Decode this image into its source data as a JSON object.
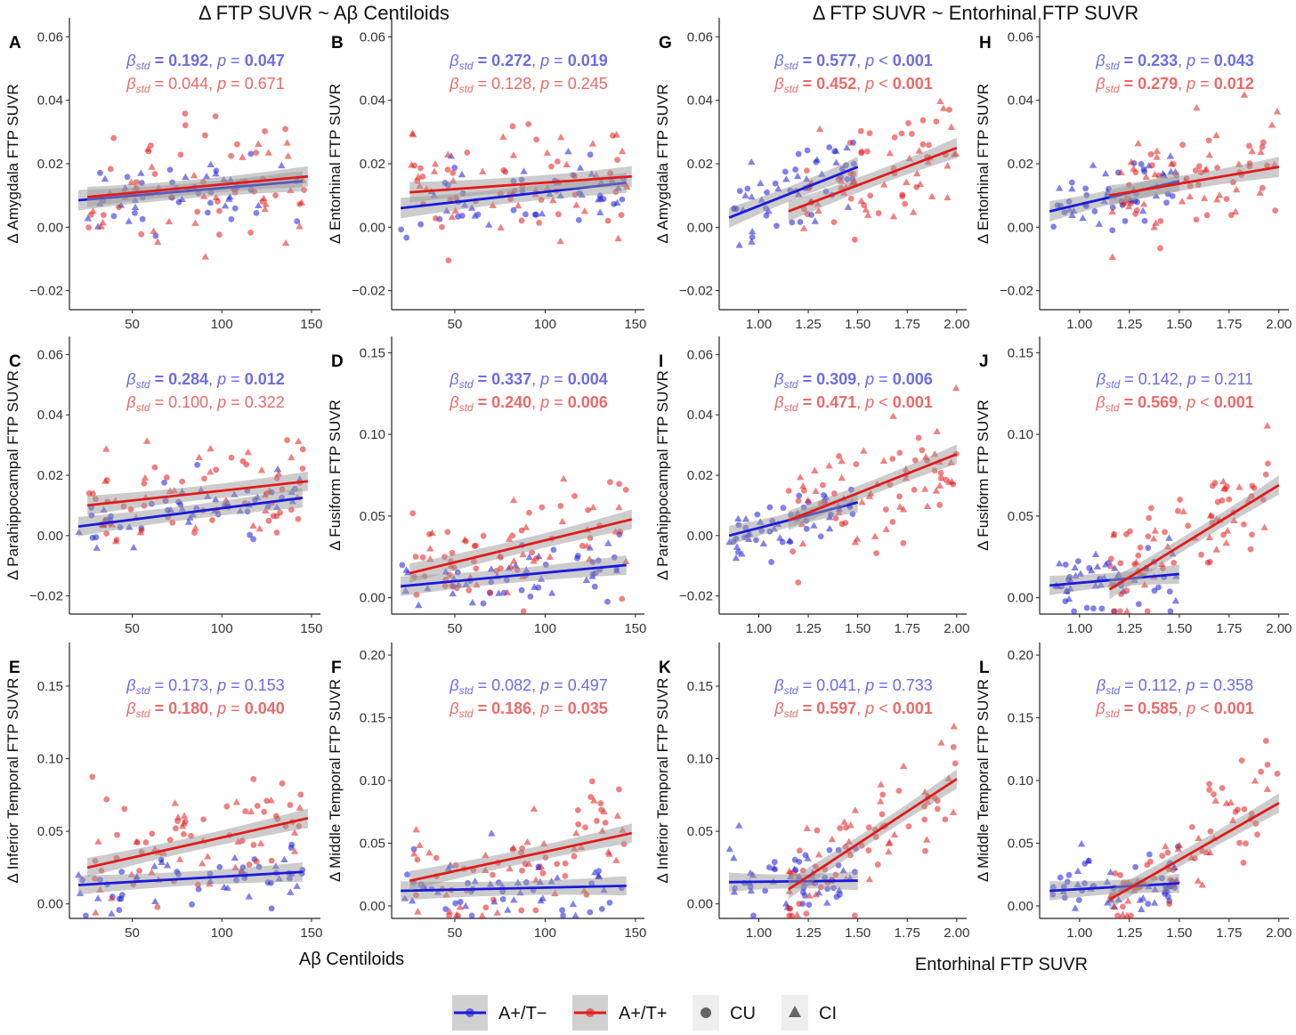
{
  "figure": {
    "section_titles": [
      "Δ FTP SUVR ~ Aβ Centiloids",
      "Δ FTP SUVR ~ Entorhinal FTP SUVR"
    ],
    "x_titles": [
      "Aβ Centiloids",
      "Entorhinal FTP SUVR"
    ]
  },
  "legend": {
    "items": [
      {
        "label": "A+/T−",
        "kind": "line",
        "color": "#1a1adb"
      },
      {
        "label": "A+/T+",
        "kind": "line",
        "color": "#e31a1a"
      },
      {
        "label": "CU",
        "kind": "circle",
        "color": "#666666"
      },
      {
        "label": "CI",
        "kind": "triangle",
        "color": "#666666"
      }
    ]
  },
  "colors": {
    "neg": "#1a1adb",
    "pos": "#e31a1a",
    "neg_text": "#6b6bea",
    "pos_text": "#ef6868",
    "ribbon": "#9a9a9a"
  },
  "chart_data": [
    {
      "id": "A",
      "type": "scatter",
      "ylabel": "Δ Amygdala FTP SUVR",
      "xlim": [
        15,
        155
      ],
      "ylim": [
        -0.026,
        0.066
      ],
      "xticks": [
        "50",
        "100",
        "150"
      ],
      "yticks": [
        "−0.02",
        "0.00",
        "0.02",
        "0.04",
        "0.06"
      ],
      "stats": {
        "neg": {
          "beta": "0.192",
          "p_op": "=",
          "p": "0.047",
          "bold": true
        },
        "pos": {
          "beta": "0.044",
          "p_op": "=",
          "p": "0.671",
          "bold": false
        }
      },
      "fits": {
        "neg": [
          [
            20,
            0.0085
          ],
          [
            145,
            0.0145
          ]
        ],
        "pos": [
          [
            25,
            0.0095
          ],
          [
            148,
            0.016
          ]
        ]
      }
    },
    {
      "id": "B",
      "type": "scatter",
      "ylabel": "Δ Entorhinal FTP SUVR",
      "xlim": [
        15,
        155
      ],
      "ylim": [
        -0.026,
        0.066
      ],
      "xticks": [
        "50",
        "100",
        "150"
      ],
      "yticks": [
        "−0.02",
        "0.00",
        "0.02",
        "0.04",
        "0.06"
      ],
      "stats": {
        "neg": {
          "beta": "0.272",
          "p_op": "=",
          "p": "0.019",
          "bold": true
        },
        "pos": {
          "beta": "0.128",
          "p_op": "=",
          "p": "0.245",
          "bold": false
        }
      },
      "fits": {
        "neg": [
          [
            20,
            0.006
          ],
          [
            145,
            0.014
          ]
        ],
        "pos": [
          [
            25,
            0.011
          ],
          [
            148,
            0.016
          ]
        ]
      }
    },
    {
      "id": "G",
      "type": "scatter",
      "ylabel": "Δ Amygdala FTP SUVR",
      "xlim": [
        0.8,
        2.05
      ],
      "ylim": [
        -0.026,
        0.066
      ],
      "xticks": [
        "1.00",
        "1.25",
        "1.50",
        "1.75",
        "2.00"
      ],
      "yticks": [
        "−0.02",
        "0.00",
        "0.02",
        "0.04",
        "0.06"
      ],
      "stats": {
        "neg": {
          "beta": "0.577",
          "p_op": "<",
          "p": "0.001",
          "bold": true
        },
        "pos": {
          "beta": "0.452",
          "p_op": "<",
          "p": "0.001",
          "bold": true
        }
      },
      "fits": {
        "neg": [
          [
            0.85,
            0.003
          ],
          [
            1.5,
            0.019
          ]
        ],
        "pos": [
          [
            1.15,
            0.005
          ],
          [
            2.0,
            0.025
          ]
        ]
      }
    },
    {
      "id": "H",
      "type": "scatter",
      "ylabel": "Δ Entorhinal FTP SUVR",
      "xlim": [
        0.8,
        2.05
      ],
      "ylim": [
        -0.026,
        0.066
      ],
      "xticks": [
        "1.00",
        "1.25",
        "1.50",
        "1.75",
        "2.00"
      ],
      "yticks": [
        "−0.02",
        "0.00",
        "0.02",
        "0.04",
        "0.06"
      ],
      "stats": {
        "neg": {
          "beta": "0.233",
          "p_op": "=",
          "p": "0.043",
          "bold": true
        },
        "pos": {
          "beta": "0.279",
          "p_op": "=",
          "p": "0.012",
          "bold": true
        }
      },
      "fits": {
        "neg": [
          [
            0.85,
            0.005
          ],
          [
            1.5,
            0.0145
          ]
        ],
        "pos": [
          [
            1.15,
            0.01
          ],
          [
            2.0,
            0.019
          ]
        ]
      }
    },
    {
      "id": "C",
      "type": "scatter",
      "ylabel": "Δ Parahippocampal FTP SUVR",
      "xlim": [
        15,
        155
      ],
      "ylim": [
        -0.026,
        0.066
      ],
      "xticks": [
        "50",
        "100",
        "150"
      ],
      "yticks": [
        "−0.02",
        "0.00",
        "0.02",
        "0.04",
        "0.06"
      ],
      "stats": {
        "neg": {
          "beta": "0.284",
          "p_op": "=",
          "p": "0.012",
          "bold": true
        },
        "pos": {
          "beta": "0.100",
          "p_op": "=",
          "p": "0.322",
          "bold": false
        }
      },
      "fits": {
        "neg": [
          [
            20,
            0.003
          ],
          [
            145,
            0.0125
          ]
        ],
        "pos": [
          [
            25,
            0.01
          ],
          [
            148,
            0.018
          ]
        ]
      }
    },
    {
      "id": "D",
      "type": "scatter",
      "ylabel": "Δ Fusiform FTP SUVR",
      "xlim": [
        15,
        155
      ],
      "ylim": [
        -0.01,
        0.16
      ],
      "xticks": [
        "50",
        "100",
        "150"
      ],
      "yticks": [
        "0.00",
        "0.05",
        "0.10",
        "0.15"
      ],
      "stats": {
        "neg": {
          "beta": "0.337",
          "p_op": "=",
          "p": "0.004",
          "bold": true
        },
        "pos": {
          "beta": "0.240",
          "p_op": "=",
          "p": "0.006",
          "bold": true
        }
      },
      "fits": {
        "neg": [
          [
            20,
            0.007
          ],
          [
            145,
            0.02
          ]
        ],
        "pos": [
          [
            25,
            0.015
          ],
          [
            148,
            0.048
          ]
        ]
      }
    },
    {
      "id": "I",
      "type": "scatter",
      "ylabel": "Δ Parahippocampal FTP SUVR",
      "xlim": [
        0.8,
        2.05
      ],
      "ylim": [
        -0.026,
        0.066
      ],
      "xticks": [
        "1.00",
        "1.25",
        "1.50",
        "1.75",
        "2.00"
      ],
      "yticks": [
        "−0.02",
        "0.00",
        "0.02",
        "0.04",
        "0.06"
      ],
      "stats": {
        "neg": {
          "beta": "0.309",
          "p_op": "=",
          "p": "0.006",
          "bold": true
        },
        "pos": {
          "beta": "0.471",
          "p_op": "<",
          "p": "0.001",
          "bold": true
        }
      },
      "fits": {
        "neg": [
          [
            0.85,
            0.0
          ],
          [
            1.5,
            0.011
          ]
        ],
        "pos": [
          [
            1.15,
            0.005
          ],
          [
            2.0,
            0.027
          ]
        ]
      }
    },
    {
      "id": "J",
      "type": "scatter",
      "ylabel": "Δ Fusiform FTP SUVR",
      "xlim": [
        0.8,
        2.05
      ],
      "ylim": [
        -0.01,
        0.16
      ],
      "xticks": [
        "1.00",
        "1.25",
        "1.50",
        "1.75",
        "2.00"
      ],
      "yticks": [
        "0.00",
        "0.05",
        "0.10",
        "0.15"
      ],
      "stats": {
        "neg": {
          "beta": "0.142",
          "p_op": "=",
          "p": "0.211",
          "bold": false
        },
        "pos": {
          "beta": "0.569",
          "p_op": "<",
          "p": "0.001",
          "bold": true
        }
      },
      "fits": {
        "neg": [
          [
            0.85,
            0.0075
          ],
          [
            1.5,
            0.0145
          ]
        ],
        "pos": [
          [
            1.15,
            0.005
          ],
          [
            2.0,
            0.069
          ]
        ]
      }
    },
    {
      "id": "E",
      "type": "scatter",
      "ylabel": "Δ Inferior Temporal FTP SUVR",
      "xlim": [
        15,
        155
      ],
      "ylim": [
        -0.01,
        0.18
      ],
      "xticks": [
        "50",
        "100",
        "150"
      ],
      "yticks": [
        "0.00",
        "0.05",
        "0.10",
        "0.15"
      ],
      "stats": {
        "neg": {
          "beta": "0.173",
          "p_op": "=",
          "p": "0.153",
          "bold": false
        },
        "pos": {
          "beta": "0.180",
          "p_op": "=",
          "p": "0.040",
          "bold": true
        }
      },
      "fits": {
        "neg": [
          [
            20,
            0.013
          ],
          [
            145,
            0.022
          ]
        ],
        "pos": [
          [
            25,
            0.025
          ],
          [
            148,
            0.059
          ]
        ]
      }
    },
    {
      "id": "F",
      "type": "scatter",
      "ylabel": "Δ Middle Temporal FTP SUVR",
      "xlim": [
        15,
        155
      ],
      "ylim": [
        -0.01,
        0.21
      ],
      "xticks": [
        "50",
        "100",
        "150"
      ],
      "yticks": [
        "0.00",
        "0.05",
        "0.10",
        "0.15",
        "0.20"
      ],
      "stats": {
        "neg": {
          "beta": "0.082",
          "p_op": "=",
          "p": "0.497",
          "bold": false
        },
        "pos": {
          "beta": "0.186",
          "p_op": "=",
          "p": "0.035",
          "bold": true
        }
      },
      "fits": {
        "neg": [
          [
            20,
            0.012
          ],
          [
            145,
            0.016
          ]
        ],
        "pos": [
          [
            25,
            0.02
          ],
          [
            148,
            0.058
          ]
        ]
      }
    },
    {
      "id": "K",
      "type": "scatter",
      "ylabel": "Δ Inferior Temporal FTP SUVR",
      "xlim": [
        0.8,
        2.05
      ],
      "ylim": [
        -0.01,
        0.18
      ],
      "xticks": [
        "1.00",
        "1.25",
        "1.50",
        "1.75",
        "2.00"
      ],
      "yticks": [
        "0.00",
        "0.05",
        "0.10",
        "0.15"
      ],
      "stats": {
        "neg": {
          "beta": "0.041",
          "p_op": "=",
          "p": "0.733",
          "bold": false
        },
        "pos": {
          "beta": "0.597",
          "p_op": "<",
          "p": "0.001",
          "bold": true
        }
      },
      "fits": {
        "neg": [
          [
            0.85,
            0.015
          ],
          [
            1.5,
            0.016
          ]
        ],
        "pos": [
          [
            1.15,
            0.01
          ],
          [
            2.0,
            0.086
          ]
        ]
      }
    },
    {
      "id": "L",
      "type": "scatter",
      "ylabel": "Δ Middle Temporal FTP SUVR",
      "xlim": [
        0.8,
        2.05
      ],
      "ylim": [
        -0.01,
        0.21
      ],
      "xticks": [
        "1.00",
        "1.25",
        "1.50",
        "1.75",
        "2.00"
      ],
      "yticks": [
        "0.00",
        "0.05",
        "0.10",
        "0.15",
        "0.20"
      ],
      "stats": {
        "neg": {
          "beta": "0.112",
          "p_op": "=",
          "p": "0.358",
          "bold": false
        },
        "pos": {
          "beta": "0.585",
          "p_op": "<",
          "p": "0.001",
          "bold": true
        }
      },
      "fits": {
        "neg": [
          [
            0.85,
            0.012
          ],
          [
            1.5,
            0.018
          ]
        ],
        "pos": [
          [
            1.15,
            0.005
          ],
          [
            2.0,
            0.082
          ]
        ]
      }
    }
  ]
}
